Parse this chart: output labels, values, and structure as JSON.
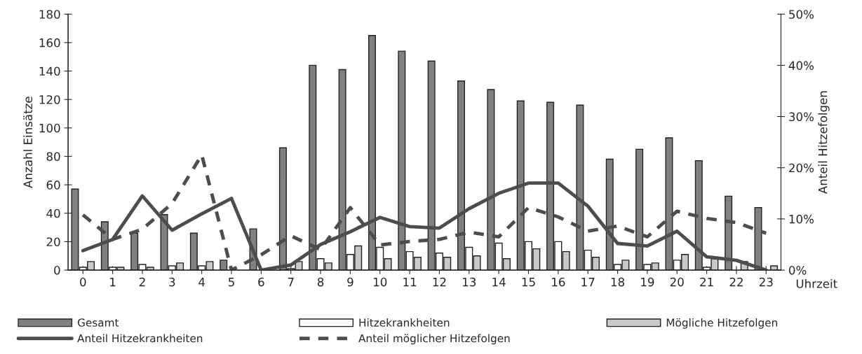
{
  "chart_data": {
    "type": "bar",
    "xlabel": "Uhrzeit",
    "ylabel": "Anzahl Einsätze",
    "y2label": "Anteil Hitzefolgen",
    "categories": [
      "0",
      "1",
      "2",
      "3",
      "4",
      "5",
      "6",
      "7",
      "8",
      "9",
      "10",
      "11",
      "12",
      "13",
      "14",
      "15",
      "16",
      "17",
      "18",
      "19",
      "20",
      "21",
      "22",
      "23"
    ],
    "series": [
      {
        "name": "Gesamt",
        "color": "#808080",
        "values": [
          57,
          34,
          26,
          39,
          26,
          7,
          29,
          86,
          144,
          141,
          165,
          154,
          147,
          133,
          127,
          119,
          118,
          116,
          78,
          85,
          93,
          77,
          52,
          44
        ]
      },
      {
        "name": "Hitzekrankheiten",
        "color": "#ffffff",
        "values": [
          2,
          2,
          4,
          3,
          3,
          0,
          0,
          1,
          8,
          11,
          16,
          13,
          12,
          16,
          19,
          20,
          20,
          14,
          4,
          4,
          7,
          2,
          0,
          0
        ]
      },
      {
        "name": "Mögliche Hitzefolgen",
        "color": "#c8c8c8",
        "values": [
          6,
          2,
          2,
          5,
          6,
          0,
          0,
          6,
          5,
          17,
          8,
          9,
          9,
          10,
          8,
          15,
          13,
          9,
          7,
          5,
          11,
          8,
          6,
          3
        ]
      },
      {
        "name": "Anteil Hitzekrankheiten",
        "type": "line",
        "axis": "y2",
        "line_style": "solid",
        "color": "#4d4d4d",
        "values": [
          3.8,
          6,
          14.5,
          7.8,
          11,
          14,
          0,
          1,
          5,
          7.5,
          10.3,
          8.5,
          8.2,
          12,
          15,
          17,
          17,
          12.5,
          5.2,
          4.7,
          7.6,
          2.6,
          1.9,
          0
        ]
      },
      {
        "name": "Anteil möglicher Hitzefolgen",
        "type": "line",
        "axis": "y2",
        "line_style": "dashed",
        "color": "#4d4d4d",
        "values": [
          10.8,
          6,
          8,
          13,
          22.5,
          0,
          3,
          6.7,
          4,
          12.2,
          4.9,
          5.6,
          6,
          7.4,
          6.5,
          12.2,
          10.4,
          7.6,
          8.6,
          6.5,
          11.5,
          10.1,
          9.3,
          7.2
        ]
      }
    ],
    "ylim": [
      0,
      180
    ],
    "yticks": [
      0,
      20,
      40,
      60,
      80,
      100,
      120,
      140,
      160,
      180
    ],
    "y2lim": [
      0,
      50
    ],
    "y2ticks": [
      {
        "value": 0,
        "label": "0%"
      },
      {
        "value": 10,
        "label": "10%"
      },
      {
        "value": 20,
        "label": "20%"
      },
      {
        "value": 30,
        "label": "30%"
      },
      {
        "value": 40,
        "label": "40%"
      },
      {
        "value": 50,
        "label": "50%"
      }
    ],
    "legend": "bottom",
    "grid": false
  }
}
